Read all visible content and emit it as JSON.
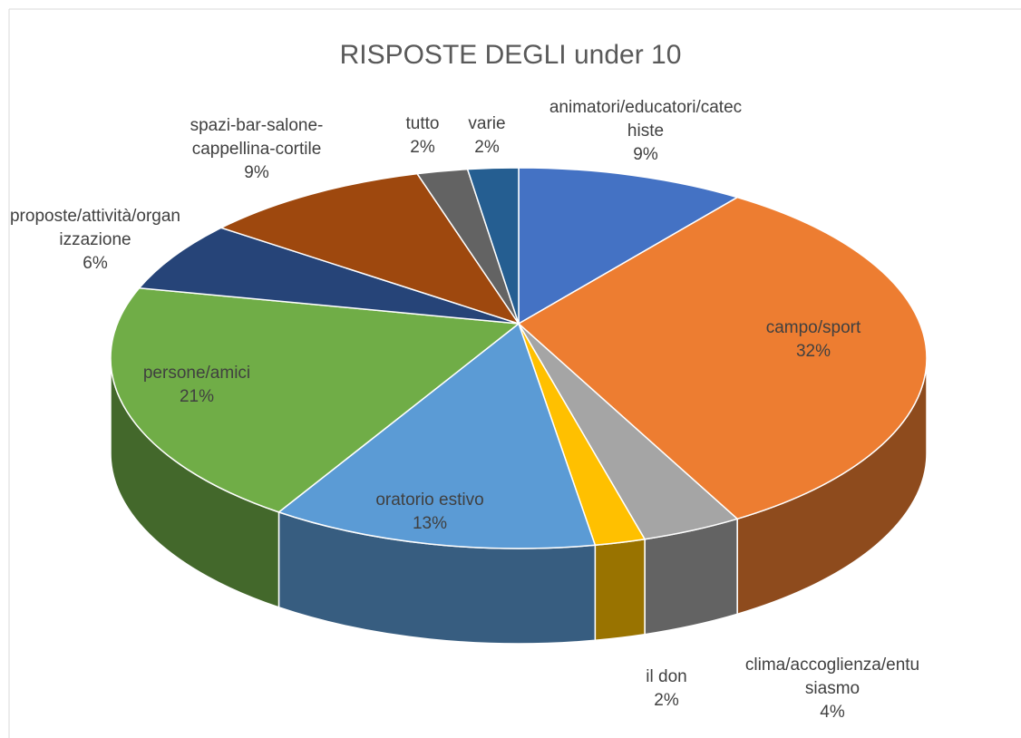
{
  "chart_data": {
    "type": "pie3d",
    "title": "RISPOSTE DEGLI under 10",
    "categories": [
      "animatori/educatori/catechiste",
      "campo/sport",
      "clima/accoglienza/entusiasmo",
      "il don",
      "oratorio estivo",
      "persone/amici",
      "proposte/attività/organizzazione",
      "spazi-bar-salone-cappellina-cortile",
      "tutto",
      "varie"
    ],
    "values": [
      9,
      32,
      4,
      2,
      13,
      21,
      6,
      9,
      2,
      2
    ],
    "value_labels": [
      "9%",
      "32%",
      "4%",
      "2%",
      "13%",
      "21%",
      "6%",
      "9%",
      "2%",
      "2%"
    ],
    "colors": [
      "#4472c4",
      "#ed7d31",
      "#a5a5a5",
      "#ffc000",
      "#5b9bd5",
      "#70ad47",
      "#264478",
      "#9e480e",
      "#636363",
      "#255e91"
    ]
  }
}
